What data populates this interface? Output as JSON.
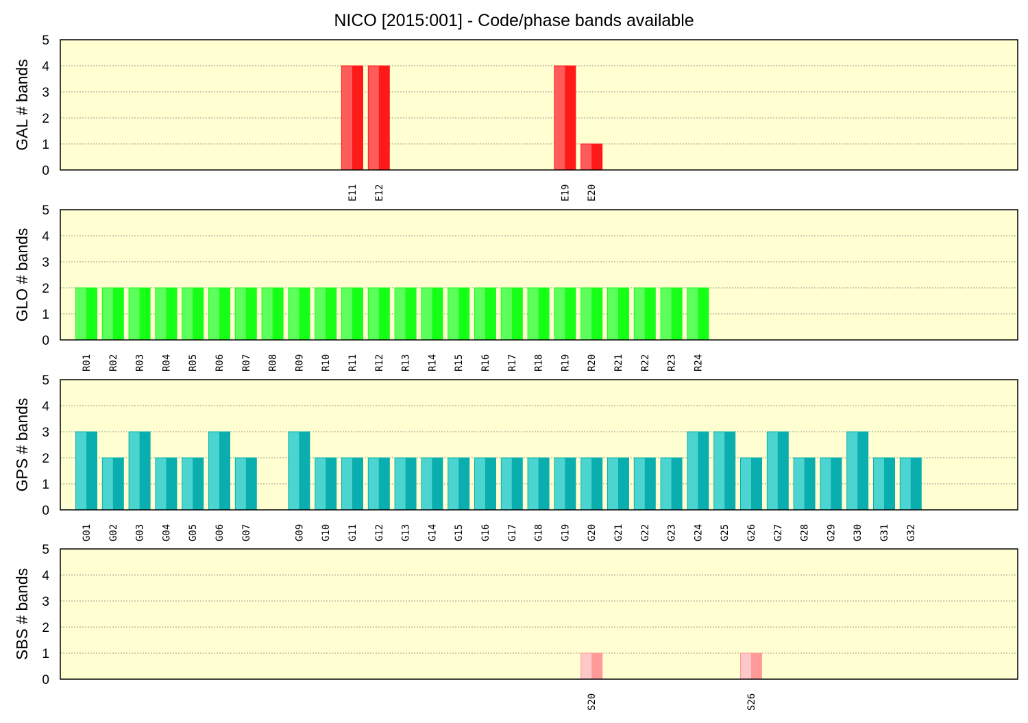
{
  "chart_data": {
    "title": "NICO [2015:001] - Code/phase bands available",
    "ylim": [
      0,
      5
    ],
    "yticks": [
      "0",
      "1",
      "2",
      "3",
      "4",
      "5"
    ],
    "grid": "y-dashed",
    "panels": [
      {
        "type": "bar",
        "ylabel": "GAL # bands",
        "color": "#ff1a1a",
        "color_light": "#ff5b5b",
        "categories": [
          "E11",
          "E12",
          "E19",
          "E20"
        ],
        "slots": [
          11,
          12,
          19,
          20
        ],
        "values": [
          4,
          4,
          4,
          1
        ]
      },
      {
        "type": "bar",
        "ylabel": "GLO # bands",
        "color": "#16ff16",
        "color_light": "#5cff5c",
        "categories": [
          "R01",
          "R02",
          "R03",
          "R04",
          "R05",
          "R06",
          "R07",
          "R08",
          "R09",
          "R10",
          "R11",
          "R12",
          "R13",
          "R14",
          "R15",
          "R16",
          "R17",
          "R18",
          "R19",
          "R20",
          "R21",
          "R22",
          "R23",
          "R24"
        ],
        "slots": [
          1,
          2,
          3,
          4,
          5,
          6,
          7,
          8,
          9,
          10,
          11,
          12,
          13,
          14,
          15,
          16,
          17,
          18,
          19,
          20,
          21,
          22,
          23,
          24
        ],
        "values": [
          2,
          2,
          2,
          2,
          2,
          2,
          2,
          2,
          2,
          2,
          2,
          2,
          2,
          2,
          2,
          2,
          2,
          2,
          2,
          2,
          2,
          2,
          2,
          2
        ]
      },
      {
        "type": "bar",
        "ylabel": "GPS # bands",
        "color": "#0aaeae",
        "color_light": "#4cd4d0",
        "categories": [
          "G01",
          "G02",
          "G03",
          "G04",
          "G05",
          "G06",
          "G07",
          "G09",
          "G10",
          "G11",
          "G12",
          "G13",
          "G14",
          "G15",
          "G16",
          "G17",
          "G18",
          "G19",
          "G20",
          "G21",
          "G22",
          "G23",
          "G24",
          "G25",
          "G26",
          "G27",
          "G28",
          "G29",
          "G30",
          "G31",
          "G32"
        ],
        "slots": [
          1,
          2,
          3,
          4,
          5,
          6,
          7,
          9,
          10,
          11,
          12,
          13,
          14,
          15,
          16,
          17,
          18,
          19,
          20,
          21,
          22,
          23,
          24,
          25,
          26,
          27,
          28,
          29,
          30,
          31,
          32
        ],
        "values": [
          3,
          2,
          3,
          2,
          2,
          3,
          2,
          3,
          2,
          2,
          2,
          2,
          2,
          2,
          2,
          2,
          2,
          2,
          2,
          2,
          2,
          2,
          3,
          3,
          2,
          3,
          2,
          2,
          3,
          2,
          2
        ]
      },
      {
        "type": "bar",
        "ylabel": "SBS # bands",
        "color": "#ff9a9a",
        "color_light": "#ffc8c8",
        "categories": [
          "S20",
          "S26"
        ],
        "slots": [
          20,
          26
        ],
        "values": [
          1,
          1
        ]
      }
    ]
  }
}
